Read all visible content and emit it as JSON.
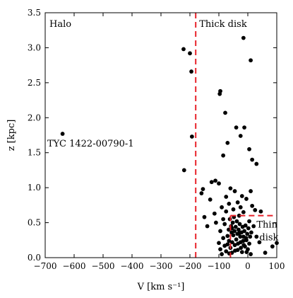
{
  "chart_data": {
    "type": "scatter",
    "title": "",
    "xlabel": "V [km s⁻¹]",
    "ylabel": "z [kpc]",
    "xlim": [
      -700,
      100
    ],
    "ylim": [
      0.0,
      3.5
    ],
    "xticks": [
      "-700",
      "-600",
      "-500",
      "-400",
      "-300",
      "-200",
      "-100",
      "0",
      "100"
    ],
    "yticks": [
      "0.0",
      "0.5",
      "1.0",
      "1.5",
      "2.0",
      "2.5",
      "3.0",
      "3.5"
    ],
    "grid": false,
    "marker_color": "#000000",
    "boundary_color": "#e8222a",
    "regions": {
      "halo": "Halo",
      "thick_disk": "Thick disk",
      "thin_disk_line1": "Thin",
      "thin_disk_line2": "disk"
    },
    "boundaries": {
      "thick_disk_v": -180,
      "thin_disk_v": -60,
      "thin_disk_z": 0.6
    },
    "annotation": {
      "text": "TYC 1422-00790-1",
      "x": -640,
      "y": 1.77
    },
    "points": [
      [
        -640,
        1.77
      ],
      [
        -222,
        2.98
      ],
      [
        -200,
        2.92
      ],
      [
        -195,
        2.66
      ],
      [
        -193,
        1.73
      ],
      [
        -220,
        1.25
      ],
      [
        -15,
        3.14
      ],
      [
        10,
        2.82
      ],
      [
        -95,
        2.38
      ],
      [
        -97,
        2.34
      ],
      [
        -78,
        2.07
      ],
      [
        -40,
        1.86
      ],
      [
        -12,
        1.86
      ],
      [
        -25,
        1.74
      ],
      [
        -70,
        1.64
      ],
      [
        -85,
        1.46
      ],
      [
        5,
        1.55
      ],
      [
        15,
        1.4
      ],
      [
        30,
        1.34
      ],
      [
        -155,
        0.98
      ],
      [
        -160,
        0.92
      ],
      [
        -125,
        1.08
      ],
      [
        -112,
        1.1
      ],
      [
        -130,
        0.83
      ],
      [
        -150,
        0.58
      ],
      [
        -100,
        1.06
      ],
      [
        -75,
        0.87
      ],
      [
        -60,
        0.99
      ],
      [
        -45,
        0.95
      ],
      [
        -20,
        0.88
      ],
      [
        -5,
        0.84
      ],
      [
        10,
        0.95
      ],
      [
        15,
        0.74
      ],
      [
        25,
        0.68
      ],
      [
        45,
        0.66
      ],
      [
        -140,
        0.45
      ],
      [
        -115,
        0.63
      ],
      [
        -110,
        0.5
      ],
      [
        -95,
        0.38
      ],
      [
        -90,
        0.72
      ],
      [
        -85,
        0.55
      ],
      [
        -80,
        0.48
      ],
      [
        -75,
        0.66
      ],
      [
        -70,
        0.31
      ],
      [
        -65,
        0.77
      ],
      [
        -55,
        0.42
      ],
      [
        -50,
        0.69
      ],
      [
        -35,
        0.79
      ],
      [
        -30,
        0.6
      ],
      [
        -25,
        0.72
      ],
      [
        -15,
        0.65
      ],
      [
        5,
        0.52
      ],
      [
        20,
        0.45
      ],
      [
        30,
        0.3
      ],
      [
        40,
        0.22
      ],
      [
        60,
        0.07
      ],
      [
        85,
        0.16
      ],
      [
        100,
        0.21
      ],
      [
        -100,
        0.21
      ],
      [
        -95,
        0.12
      ],
      [
        -90,
        0.05
      ],
      [
        -85,
        0.28
      ],
      [
        -80,
        0.17
      ],
      [
        -75,
        0.09
      ],
      [
        -70,
        0.19
      ],
      [
        -65,
        0.24
      ],
      [
        -60,
        0.14
      ],
      [
        -55,
        0.07
      ],
      [
        -50,
        0.32
      ],
      [
        -45,
        0.18
      ],
      [
        -40,
        0.26
      ],
      [
        -35,
        0.11
      ],
      [
        -30,
        0.35
      ],
      [
        -25,
        0.22
      ],
      [
        -20,
        0.08
      ],
      [
        -15,
        0.3
      ],
      [
        -10,
        0.16
      ],
      [
        -5,
        0.25
      ],
      [
        0,
        0.12
      ],
      [
        5,
        0.2
      ],
      [
        10,
        0.05
      ],
      [
        -62,
        0.55
      ],
      [
        -58,
        0.45
      ],
      [
        -52,
        0.5
      ],
      [
        -48,
        0.58
      ],
      [
        -42,
        0.44
      ],
      [
        -38,
        0.52
      ],
      [
        -32,
        0.4
      ],
      [
        -28,
        0.48
      ],
      [
        -22,
        0.36
      ],
      [
        -18,
        0.44
      ],
      [
        -12,
        0.38
      ],
      [
        -8,
        0.46
      ],
      [
        -2,
        0.34
      ],
      [
        2,
        0.42
      ],
      [
        8,
        0.3
      ],
      [
        12,
        0.36
      ],
      [
        -66,
        0.4
      ],
      [
        -46,
        0.38
      ],
      [
        -26,
        0.3
      ],
      [
        -6,
        0.28
      ],
      [
        -56,
        0.36
      ],
      [
        -36,
        0.34
      ],
      [
        -16,
        0.24
      ],
      [
        -44,
        0.1
      ],
      [
        -24,
        0.14
      ],
      [
        -34,
        0.2
      ],
      [
        -14,
        0.18
      ],
      [
        -54,
        0.22
      ],
      [
        -64,
        0.06
      ],
      [
        -4,
        0.08
      ]
    ]
  }
}
